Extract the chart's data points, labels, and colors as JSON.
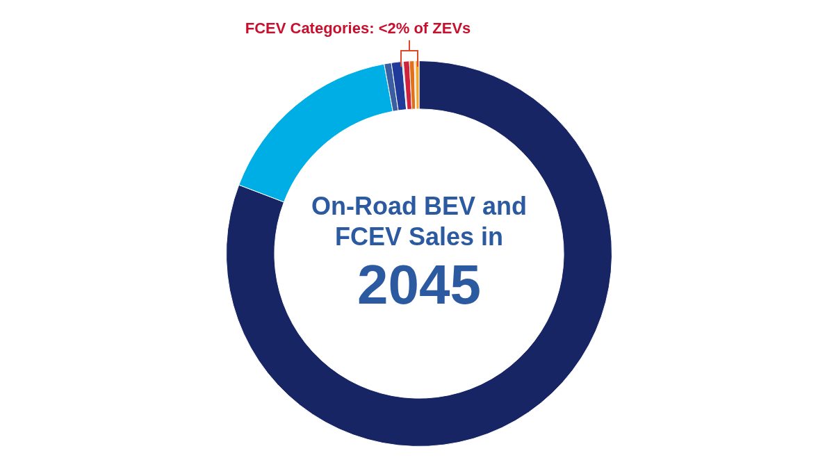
{
  "chart_data": {
    "type": "donut",
    "title": "On-Road BEV and FCEV Sales in",
    "subtitle": "2045",
    "annotations": [
      "FCEV Categories: <2% of ZEVs"
    ],
    "categories": [
      null,
      null,
      null,
      null,
      null,
      null,
      null,
      null,
      null
    ],
    "values": [
      80.8,
      16.3,
      0.6,
      0.9,
      0.1,
      0.5,
      0.4,
      0.1,
      0.3
    ],
    "colors": [
      "#172564",
      "#00aee6",
      "#3a5ea0",
      "#1f3a98",
      "#7ad8d8",
      "#d0213d",
      "#e0701a",
      "#f4b8a8",
      "#f5a623"
    ],
    "legend": false
  }
}
